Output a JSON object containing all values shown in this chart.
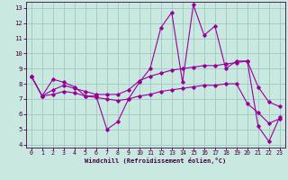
{
  "xlabel": "Windchill (Refroidissement éolien,°C)",
  "bg_color": "#c8e8e0",
  "line_color": "#990099",
  "grid_color": "#a0c8c0",
  "xlim": [
    -0.5,
    23.5
  ],
  "ylim": [
    3.8,
    13.4
  ],
  "xticks": [
    0,
    1,
    2,
    3,
    4,
    5,
    6,
    7,
    8,
    9,
    10,
    11,
    12,
    13,
    14,
    15,
    16,
    17,
    18,
    19,
    20,
    21,
    22,
    23
  ],
  "yticks": [
    4,
    5,
    6,
    7,
    8,
    9,
    10,
    11,
    12,
    13
  ],
  "series1_x": [
    0,
    1,
    2,
    3,
    4,
    5,
    6,
    7,
    8,
    9,
    10,
    11,
    12,
    13,
    14,
    15,
    16,
    17,
    18,
    19,
    20,
    21,
    22,
    23
  ],
  "series1_y": [
    8.5,
    7.2,
    8.3,
    8.1,
    7.8,
    7.2,
    7.2,
    5.0,
    5.5,
    7.0,
    8.1,
    9.0,
    11.7,
    12.7,
    8.1,
    13.2,
    11.2,
    11.8,
    9.0,
    9.5,
    9.5,
    5.2,
    4.2,
    5.8
  ],
  "series2_x": [
    0,
    1,
    2,
    3,
    4,
    5,
    6,
    7,
    8,
    9,
    10,
    11,
    12,
    13,
    14,
    15,
    16,
    17,
    18,
    19,
    20,
    21,
    22,
    23
  ],
  "series2_y": [
    8.5,
    7.2,
    7.6,
    7.9,
    7.7,
    7.5,
    7.3,
    7.3,
    7.3,
    7.6,
    8.2,
    8.5,
    8.7,
    8.9,
    9.0,
    9.1,
    9.2,
    9.2,
    9.3,
    9.4,
    9.5,
    7.8,
    6.8,
    6.5
  ],
  "series3_x": [
    0,
    1,
    2,
    3,
    4,
    5,
    6,
    7,
    8,
    9,
    10,
    11,
    12,
    13,
    14,
    15,
    16,
    17,
    18,
    19,
    20,
    21,
    22,
    23
  ],
  "series3_y": [
    8.5,
    7.2,
    7.3,
    7.5,
    7.4,
    7.2,
    7.1,
    7.0,
    6.9,
    7.0,
    7.2,
    7.3,
    7.5,
    7.6,
    7.7,
    7.8,
    7.9,
    7.9,
    8.0,
    8.0,
    6.7,
    6.1,
    5.4,
    5.7
  ],
  "xlabel_fontsize": 5.0,
  "tick_fontsize": 4.8,
  "marker_size": 1.8,
  "line_width": 0.8
}
